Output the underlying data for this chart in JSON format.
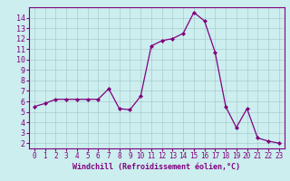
{
  "x": [
    0,
    1,
    2,
    3,
    4,
    5,
    6,
    7,
    8,
    9,
    10,
    11,
    12,
    13,
    14,
    15,
    16,
    17,
    18,
    19,
    20,
    21,
    22,
    23
  ],
  "y": [
    5.5,
    5.8,
    6.2,
    6.2,
    6.2,
    6.2,
    6.2,
    7.2,
    5.3,
    5.2,
    6.5,
    11.3,
    11.8,
    12.0,
    12.5,
    14.5,
    13.7,
    10.7,
    5.5,
    3.5,
    5.3,
    2.5,
    2.2,
    2.0
  ],
  "line_color": "#800080",
  "marker_color": "#800080",
  "bg_color": "#cceeee",
  "grid_color": "#aacccc",
  "xlabel": "Windchill (Refroidissement éolien,°C)",
  "ylabel_ticks": [
    2,
    3,
    4,
    5,
    6,
    7,
    8,
    9,
    10,
    11,
    12,
    13,
    14
  ],
  "xlabel_ticks": [
    0,
    1,
    2,
    3,
    4,
    5,
    6,
    7,
    8,
    9,
    10,
    11,
    12,
    13,
    14,
    15,
    16,
    17,
    18,
    19,
    20,
    21,
    22,
    23
  ],
  "ylim": [
    1.5,
    15.0
  ],
  "xlim": [
    -0.5,
    23.5
  ],
  "tick_color": "#800080",
  "label_color": "#800080",
  "spine_color": "#800080",
  "font_family": "monospace"
}
